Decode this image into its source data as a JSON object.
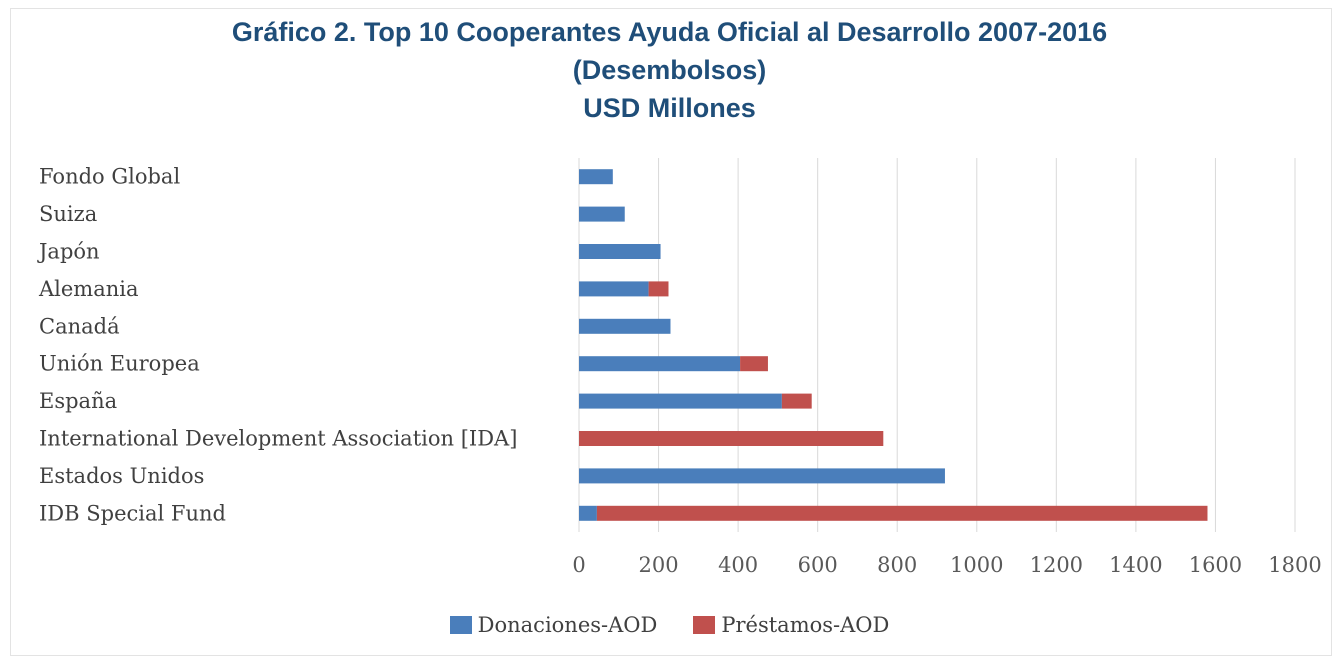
{
  "chart_data": {
    "type": "bar",
    "orientation": "horizontal",
    "stacked": true,
    "title": "Gráfico 2. Top 10 Cooperantes Ayuda Oficial al Desarrollo 2007-2016",
    "subtitle": "(Desembolsos)",
    "unit_title": "USD Millones",
    "categories": [
      "Fondo Global",
      "Suiza",
      "Japón",
      "Alemania",
      "Canadá",
      "Unión Europea",
      "España",
      "International Development Association [IDA]",
      "Estados Unidos",
      "IDB Special Fund"
    ],
    "series": [
      {
        "name": "Donaciones-AOD",
        "color": "#4a7ebb",
        "values": [
          85,
          115,
          205,
          175,
          230,
          405,
          510,
          0,
          920,
          45
        ]
      },
      {
        "name": "Préstamos-AOD",
        "color": "#c0504d",
        "values": [
          0,
          0,
          0,
          50,
          0,
          70,
          75,
          765,
          0,
          1535
        ]
      }
    ],
    "xlim": [
      0,
      1800
    ],
    "xticks": [
      "0",
      "200",
      "400",
      "600",
      "800",
      "1000",
      "1200",
      "1400",
      "1600",
      "1800"
    ],
    "grid": true,
    "legend_position": "bottom"
  }
}
